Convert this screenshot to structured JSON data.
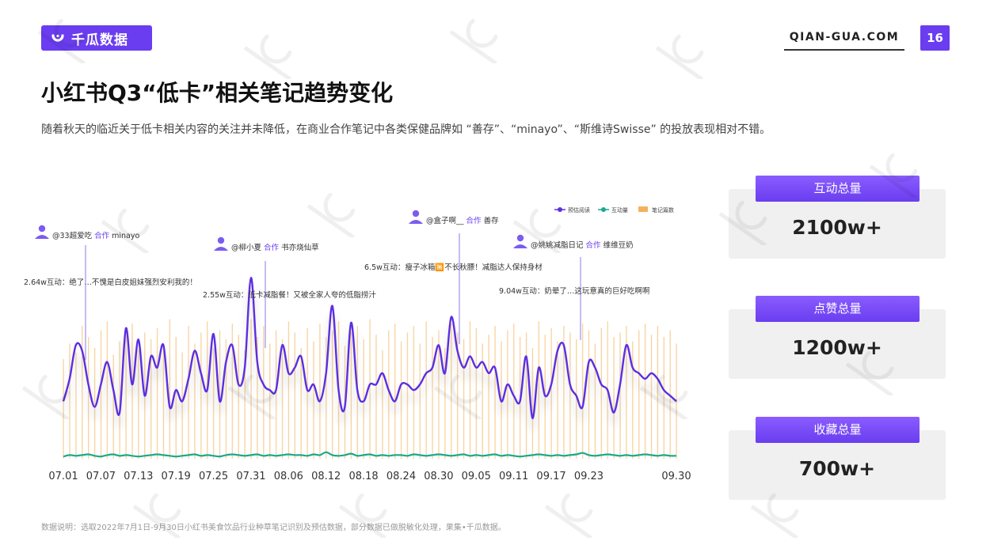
{
  "brand": {
    "name": "千瓜数据",
    "site": "QIAN-GUA.COM",
    "page": "16"
  },
  "title": "小红书Q3“低卡”相关笔记趋势变化",
  "description": "随着秋天的临近关于低卡相关内容的关注并未降低，在商业合作笔记中各类保健品牌如 “善存”、“minayo”、“斯维诗Swisse” 的投放表现相对不错。",
  "footnote": "数据说明：选取2022年7月1日-9月30日小红书美食饮品行业种草笔记识别及预估数据，部分数据已做脱敏化处理，果集•千瓜数据。",
  "stats": [
    {
      "label": "互动总量",
      "value": "2100w+"
    },
    {
      "label": "点赞总量",
      "value": "1200w+"
    },
    {
      "label": "收藏总量",
      "value": "700w+"
    }
  ],
  "annotations": [
    {
      "user": "@33超爱吃",
      "tag": "合作",
      "brand": "minayo",
      "note": "2.64w互动：绝了…不愧是白皮姐妹强烈安利我的！",
      "day": 7
    },
    {
      "user": "@柳小夏",
      "tag": "合作",
      "brand": "书亦烧仙草",
      "note": "2.55w互动：低卡减脂餐！又被全家人夸的低脂捞汁",
      "day": 34
    },
    {
      "user": "@盒子啊__",
      "tag": "合作",
      "brand": "善存",
      "note": "6.5w互动：瘦子冰箱🈚不长秋膘！减脂达人保持身材",
      "day": 61
    },
    {
      "user": "@姚姚减脂日记",
      "tag": "合作",
      "brand": "维维豆奶",
      "note": "9.04w互动：奶晕了…这玩意真的巨好吃啊啊",
      "day": 76
    }
  ],
  "colors": {
    "accent": "#6a3df0",
    "read": "#5b2fe0",
    "interact": "#1aa88f",
    "notes": "#f3b25a"
  },
  "chart_data": {
    "type": "line",
    "legend": [
      "预估阅读",
      "互动量",
      "笔记篇数"
    ],
    "legend_position": "top-right",
    "x_ticks": [
      "07.01",
      "07.07",
      "07.13",
      "07.19",
      "07.25",
      "07.31",
      "08.06",
      "08.12",
      "08.18",
      "08.24",
      "08.30",
      "09.05",
      "09.11",
      "09.17",
      "09.23",
      "09.30"
    ],
    "series": [
      {
        "name": "预估阅读",
        "values": [
          30,
          50,
          80,
          75,
          45,
          25,
          45,
          65,
          40,
          20,
          95,
          45,
          85,
          35,
          70,
          60,
          80,
          25,
          40,
          30,
          50,
          75,
          55,
          40,
          90,
          30,
          65,
          80,
          45,
          60,
          140,
          65,
          45,
          40,
          40,
          80,
          55,
          60,
          70,
          40,
          45,
          30,
          55,
          115,
          40,
          25,
          100,
          40,
          30,
          45,
          45,
          55,
          40,
          30,
          45,
          45,
          40,
          45,
          55,
          60,
          80,
          55,
          105,
          75,
          60,
          70,
          60,
          65,
          55,
          60,
          30,
          45,
          35,
          30,
          70,
          15,
          60,
          35,
          45,
          75,
          80,
          45,
          35,
          25,
          65,
          60,
          45,
          40,
          20,
          45,
          80,
          60,
          55,
          50,
          55,
          50,
          40,
          35,
          30
        ]
      },
      {
        "name": "互动量",
        "values": [
          2,
          4,
          3,
          4,
          5,
          3,
          2,
          4,
          5,
          3,
          4,
          3,
          2,
          3,
          4,
          5,
          4,
          3,
          2,
          3,
          4,
          5,
          3,
          4,
          3,
          2,
          4,
          5,
          4,
          3,
          4,
          5,
          3,
          4,
          3,
          4,
          5,
          4,
          4,
          3,
          5,
          4,
          8,
          4,
          3,
          4,
          6,
          3,
          4,
          5,
          3,
          4,
          3,
          4,
          4,
          3,
          5,
          4,
          3,
          4,
          5,
          4,
          3,
          4,
          5,
          3,
          4,
          3,
          4,
          5,
          3,
          4,
          3,
          2,
          3,
          4,
          5,
          4,
          3,
          4,
          3,
          4,
          5,
          7,
          4,
          3,
          4,
          5,
          4,
          3,
          4,
          3,
          4,
          5,
          4,
          3,
          4,
          3,
          3
        ]
      },
      {
        "name": "笔记篇数",
        "values": [
          45,
          52,
          48,
          60,
          55,
          50,
          58,
          62,
          47,
          53,
          56,
          61,
          49,
          57,
          54,
          59,
          51,
          63,
          55,
          48,
          60,
          52,
          57,
          62,
          50,
          58,
          54,
          61,
          56,
          49,
          63,
          55,
          60,
          52,
          58,
          54,
          62,
          57,
          50,
          59,
          53,
          61,
          55,
          58,
          62,
          51,
          57,
          60,
          54,
          63,
          56,
          49,
          58,
          61,
          53,
          57,
          60,
          52,
          62,
          55,
          58,
          50,
          61,
          57,
          54,
          62,
          59,
          52,
          56,
          60,
          53,
          58,
          61,
          55,
          57,
          50,
          62,
          56,
          59,
          53,
          60,
          57,
          54,
          61,
          58,
          52,
          59,
          62,
          55,
          57,
          60,
          53,
          58,
          61,
          56,
          60,
          55,
          58,
          52
        ]
      }
    ],
    "grid": false
  }
}
